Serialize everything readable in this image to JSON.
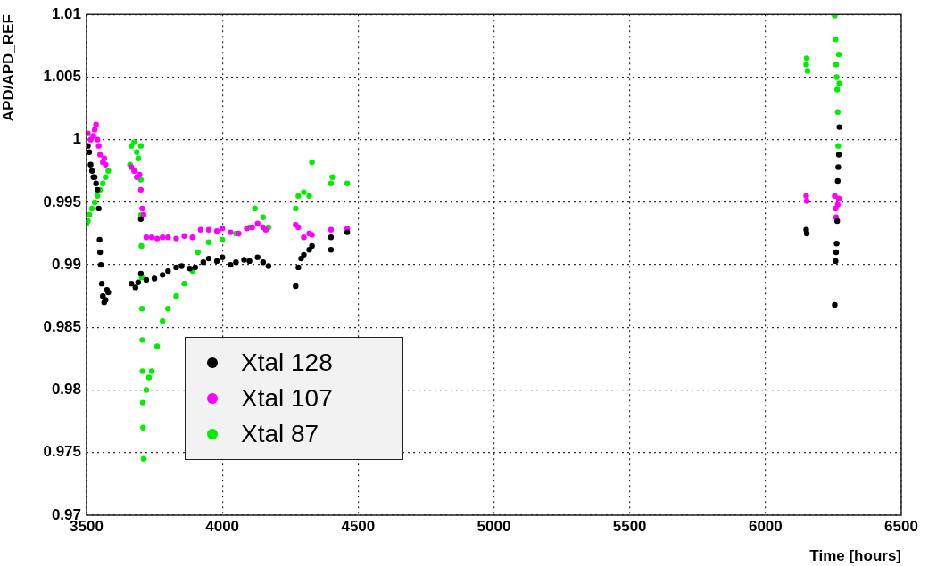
{
  "chart_data": {
    "type": "scatter",
    "xlabel": "Time [hours]",
    "ylabel": "APD/APD_REF",
    "xlim": [
      3500,
      6500
    ],
    "xticks": [
      3500,
      4000,
      4500,
      5000,
      5500,
      6000,
      6500
    ],
    "ylim": [
      0.97,
      1.01
    ],
    "yticks": [
      0.97,
      0.975,
      0.98,
      0.985,
      0.99,
      0.995,
      1,
      1.005,
      1.01
    ],
    "grid": true,
    "legend": "bottom left",
    "marker": "circle",
    "series": [
      {
        "name": "Xtal 128",
        "color": "#000000",
        "x": [
          3505,
          3510,
          3515,
          3520,
          3525,
          3530,
          3535,
          3540,
          3545,
          3548,
          3550,
          3553,
          3556,
          3560,
          3565,
          3570,
          3575,
          3580,
          3665,
          3680,
          3690,
          3700,
          3700,
          3720,
          3750,
          3780,
          3800,
          3830,
          3850,
          3880,
          3900,
          3930,
          3950,
          3980,
          4000,
          4030,
          4050,
          4080,
          4100,
          4130,
          4150,
          4170,
          4270,
          4280,
          4290,
          4300,
          4320,
          4330,
          4400,
          4400,
          4460,
          6150,
          6152,
          6255,
          6258,
          6260,
          6262,
          6264,
          6266,
          6268,
          6270,
          6272
        ],
        "values": [
          0.9995,
          0.999,
          0.998,
          0.9975,
          0.997,
          0.997,
          0.9965,
          0.996,
          0.9945,
          0.992,
          0.991,
          0.99,
          0.9885,
          0.9875,
          0.987,
          0.9872,
          0.988,
          0.9878,
          0.9885,
          0.9882,
          0.9886,
          0.9893,
          0.99365,
          0.9888,
          0.9889,
          0.9892,
          0.9895,
          0.9898,
          0.9899,
          0.9897,
          0.9898,
          0.9902,
          0.9905,
          0.9903,
          0.9906,
          0.99,
          0.9902,
          0.9904,
          0.9903,
          0.9906,
          0.9902,
          0.9899,
          0.9883,
          0.9898,
          0.9905,
          0.9908,
          0.9912,
          0.9915,
          0.9912,
          0.9922,
          0.9926,
          0.9928,
          0.9925,
          0.9868,
          0.9903,
          0.991,
          0.9917,
          0.9935,
          0.9967,
          0.9978,
          0.9988,
          1.001
        ]
      },
      {
        "name": "Xtal 107",
        "color": "#ff00ff",
        "x": [
          3505,
          3515,
          3525,
          3530,
          3535,
          3540,
          3545,
          3550,
          3560,
          3565,
          3570,
          3665,
          3675,
          3685,
          3695,
          3700,
          3705,
          3710,
          3720,
          3740,
          3760,
          3780,
          3800,
          3830,
          3860,
          3890,
          3920,
          3950,
          3980,
          4000,
          4030,
          4060,
          4090,
          4110,
          4130,
          4150,
          4160,
          4270,
          4280,
          4300,
          4320,
          4330,
          4400,
          4460,
          6150,
          6152,
          6255,
          6258,
          6260,
          6266,
          6270
        ],
        "values": [
          1.0005,
          1.0,
          1.0003,
          1.0008,
          1.0012,
          1.0,
          0.9995,
          0.9988,
          0.9982,
          0.9985,
          0.998,
          0.9978,
          0.9975,
          0.997,
          0.9972,
          0.996,
          0.9945,
          0.994,
          0.9922,
          0.9922,
          0.9921,
          0.9922,
          0.9922,
          0.9921,
          0.9923,
          0.9922,
          0.9928,
          0.9928,
          0.9927,
          0.9929,
          0.9926,
          0.9925,
          0.9929,
          0.993,
          0.9933,
          0.993,
          0.9928,
          0.9932,
          0.993,
          0.9922,
          0.9925,
          0.9924,
          0.9928,
          0.9929,
          0.9955,
          0.9951,
          0.9955,
          0.9945,
          0.9938,
          0.9948,
          0.9953
        ]
      },
      {
        "name": "Xtal 87",
        "color": "#00ee00",
        "x": [
          3500,
          3505,
          3510,
          3520,
          3530,
          3540,
          3550,
          3560,
          3570,
          3580,
          3660,
          3665,
          3675,
          3685,
          3690,
          3700,
          3700,
          3701,
          3702,
          3703,
          3704,
          3705,
          3706,
          3707,
          3708,
          3710,
          3720,
          3730,
          3740,
          3760,
          3780,
          3800,
          3830,
          3860,
          3890,
          3910,
          3950,
          4000,
          4050,
          4100,
          4120,
          4150,
          4170,
          4270,
          4280,
          4300,
          4320,
          4330,
          4400,
          4405,
          4460,
          6150,
          6152,
          6155,
          6255,
          6258,
          6260,
          6262,
          6264,
          6266,
          6268,
          6270,
          6272
        ],
        "values": [
          0.9933,
          0.9935,
          0.994,
          0.9945,
          0.995,
          0.9955,
          0.996,
          0.9965,
          0.997,
          0.9975,
          0.998,
          0.9995,
          0.9998,
          0.999,
          0.9985,
          0.9995,
          0.9968,
          0.994,
          0.9915,
          0.989,
          0.9865,
          0.984,
          0.9815,
          0.979,
          0.977,
          0.9745,
          0.98,
          0.981,
          0.9815,
          0.9835,
          0.9855,
          0.9865,
          0.9875,
          0.9885,
          0.9895,
          0.991,
          0.9918,
          0.992,
          0.9925,
          0.993,
          0.9945,
          0.9938,
          0.993,
          0.9945,
          0.9955,
          0.9958,
          0.9955,
          0.9982,
          0.9965,
          0.997,
          0.9965,
          1.006,
          1.0065,
          1.0055,
          1.0099,
          1.008,
          1.006,
          1.005,
          1.004,
          1.0022,
          0.9995,
          1.0068,
          1.0045
        ]
      }
    ]
  }
}
